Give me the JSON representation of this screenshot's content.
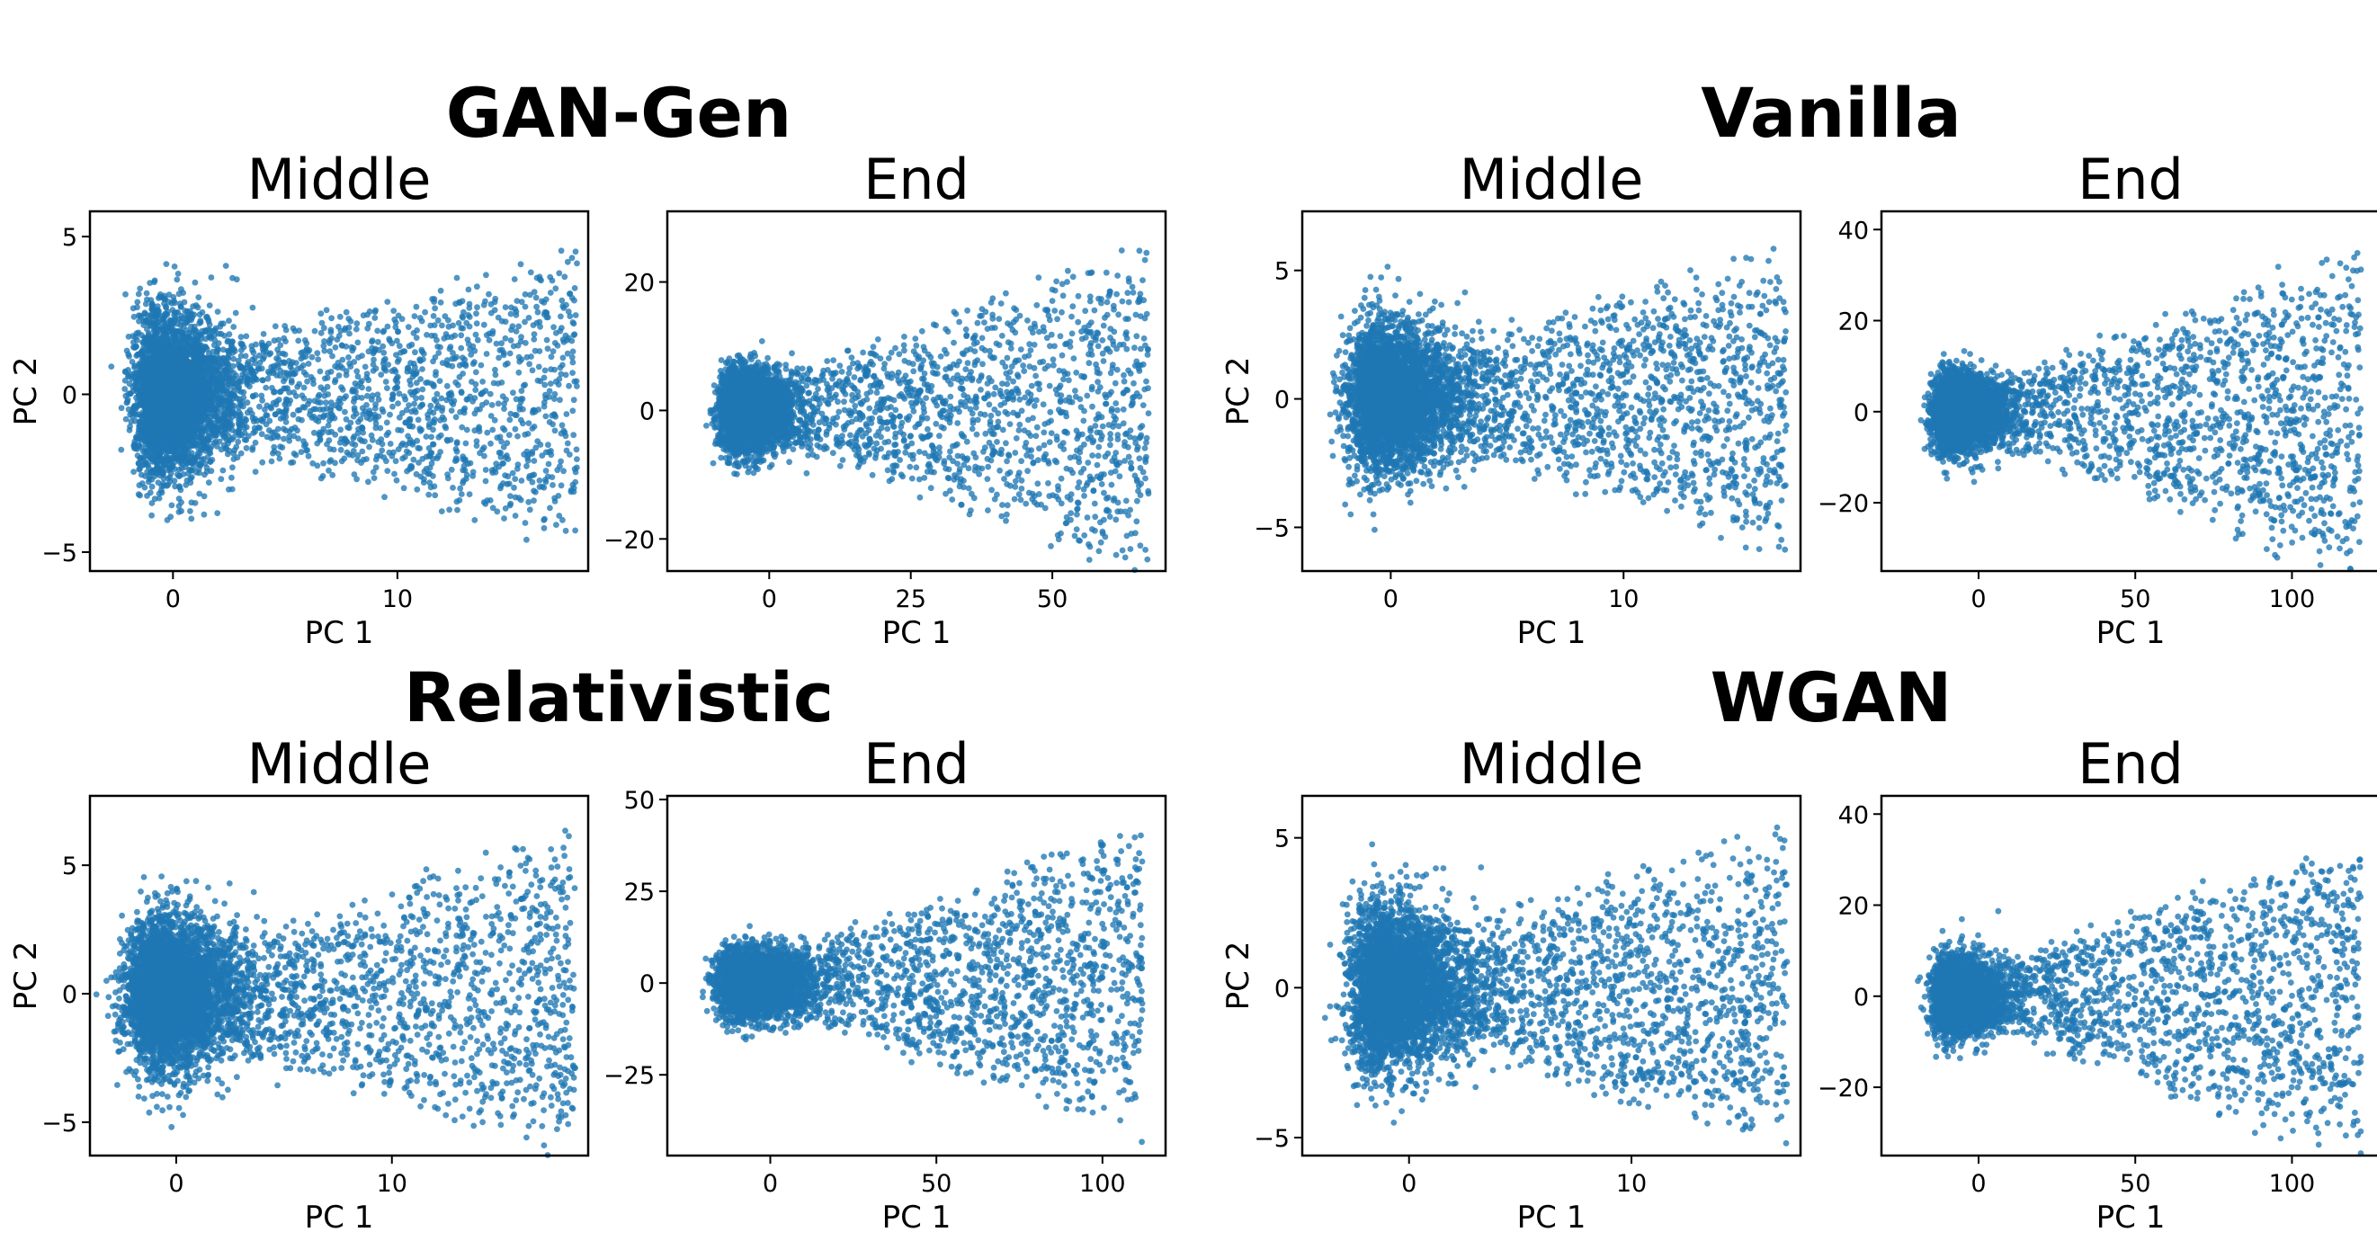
{
  "chart_data": [
    {
      "type": "scatter",
      "group": "GAN-Gen",
      "title": "Middle",
      "xlabel": "PC 1",
      "ylabel": "PC 2",
      "xlim": [
        -3.7,
        18.5
      ],
      "ylim": [
        -5.6,
        5.8
      ],
      "xticks": [
        0,
        10
      ],
      "yticks": [
        -5,
        0,
        5
      ],
      "point_model": {
        "n_points": 5200,
        "core_x": -0.8,
        "core_y_spread": 1.25,
        "x_max": 18,
        "y_max": 5.2,
        "fan_end": 4.8,
        "seed": 11
      }
    },
    {
      "type": "scatter",
      "group": "GAN-Gen",
      "title": "End",
      "xlabel": "PC 1",
      "ylabel": "PC 2",
      "xlim": [
        -18,
        70
      ],
      "ylim": [
        -25,
        31
      ],
      "xticks": [
        0,
        25,
        50
      ],
      "yticks": [
        -20,
        0,
        20
      ],
      "point_model": {
        "n_points": 5200,
        "core_x": -6,
        "core_y_spread": 3.0,
        "x_max": 67,
        "y_max": 28,
        "fan_end": 14,
        "seed": 23
      }
    },
    {
      "type": "scatter",
      "group": "Vanilla",
      "title": "Middle",
      "xlabel": "PC 1",
      "ylabel": "PC 2",
      "xlim": [
        -3.8,
        17.6
      ],
      "ylim": [
        -6.7,
        7.3
      ],
      "xticks": [
        0,
        10
      ],
      "yticks": [
        -5,
        0,
        5
      ],
      "point_model": {
        "n_points": 5200,
        "core_x": -0.8,
        "core_y_spread": 1.4,
        "x_max": 17,
        "y_max": 6.4,
        "fan_end": 5.5,
        "seed": 37
      }
    },
    {
      "type": "scatter",
      "group": "Vanilla",
      "title": "End",
      "xlabel": "PC 1",
      "ylabel": "PC 2",
      "xlim": [
        -31,
        128
      ],
      "ylim": [
        -35,
        44
      ],
      "xticks": [
        0,
        50,
        100
      ],
      "yticks": [
        -20,
        0,
        20,
        40
      ],
      "point_model": {
        "n_points": 5200,
        "core_x": -10,
        "core_y_spread": 4.0,
        "x_max": 122,
        "y_max": 40,
        "fan_end": 25,
        "seed": 41
      }
    },
    {
      "type": "scatter",
      "group": "Relativistic",
      "title": "Middle",
      "xlabel": "PC 1",
      "ylabel": "PC 2",
      "xlim": [
        -4.0,
        19.1
      ],
      "ylim": [
        -6.3,
        7.7
      ],
      "xticks": [
        0,
        10
      ],
      "yticks": [
        -5,
        0,
        5
      ],
      "point_model": {
        "n_points": 5200,
        "core_x": -1.2,
        "core_y_spread": 1.4,
        "x_max": 18.5,
        "y_max": 7.0,
        "fan_end": 6.0,
        "seed": 53
      }
    },
    {
      "type": "scatter",
      "group": "Relativistic",
      "title": "End",
      "xlabel": "PC 1",
      "ylabel": "PC 2",
      "xlim": [
        -31,
        119
      ],
      "ylim": [
        -47,
        51
      ],
      "xticks": [
        0,
        50,
        100
      ],
      "yticks": [
        -25,
        0,
        25,
        50
      ],
      "point_model": {
        "n_points": 5200,
        "core_x": -10,
        "core_y_spread": 4.5,
        "x_max": 112,
        "y_max": 47,
        "fan_end": 30,
        "seed": 67
      }
    },
    {
      "type": "scatter",
      "group": "WGAN",
      "title": "Middle",
      "xlabel": "PC 1",
      "ylabel": "PC 2",
      "xlim": [
        -4.8,
        17.6
      ],
      "ylim": [
        -5.6,
        6.4
      ],
      "xticks": [
        0,
        10
      ],
      "yticks": [
        -5,
        0,
        5
      ],
      "point_model": {
        "n_points": 5200,
        "core_x": -1.5,
        "core_y_spread": 1.3,
        "x_max": 17,
        "y_max": 5.9,
        "fan_end": 6.0,
        "seed": 71
      }
    },
    {
      "type": "scatter",
      "group": "WGAN",
      "title": "End",
      "xlabel": "PC 1",
      "ylabel": "PC 2",
      "xlim": [
        -31,
        128
      ],
      "ylim": [
        -35,
        44
      ],
      "xticks": [
        0,
        50,
        100
      ],
      "yticks": [
        -20,
        0,
        20,
        40
      ],
      "point_model": {
        "n_points": 5200,
        "core_x": -10,
        "core_y_spread": 4.0,
        "x_max": 122,
        "y_max": 40,
        "fan_end": 25,
        "seed": 83
      }
    }
  ],
  "groups": [
    {
      "name": "GAN-Gen"
    },
    {
      "name": "Vanilla"
    },
    {
      "name": "Relativistic"
    },
    {
      "name": "WGAN"
    }
  ],
  "colors": {
    "point": "#1f77b4",
    "frame": "#000000",
    "background": "#ffffff"
  }
}
